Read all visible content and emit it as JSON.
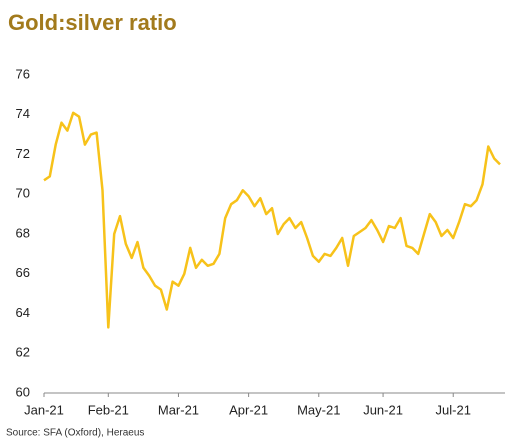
{
  "chart_data": {
    "type": "line",
    "title": "Gold:silver ratio",
    "source": "Source: SFA (Oxford), Heraeus",
    "categories": [
      "Jan-21",
      null,
      null,
      null,
      null,
      null,
      null,
      null,
      null,
      null,
      null,
      "Feb-21",
      null,
      null,
      null,
      null,
      null,
      null,
      null,
      null,
      null,
      null,
      null,
      "Mar-21",
      null,
      null,
      null,
      null,
      null,
      null,
      null,
      null,
      null,
      null,
      null,
      "Apr-21",
      null,
      null,
      null,
      null,
      null,
      null,
      null,
      null,
      null,
      null,
      null,
      "May-21",
      null,
      null,
      null,
      null,
      null,
      null,
      null,
      null,
      null,
      null,
      "Jun-21",
      null,
      null,
      null,
      null,
      null,
      null,
      null,
      null,
      null,
      null,
      null,
      "Jul-21",
      null,
      null,
      null,
      null,
      null,
      null,
      null,
      null
    ],
    "series": [
      {
        "name": "Gold:silver ratio",
        "color": "#f7c21a",
        "values": [
          70.7,
          70.9,
          72.5,
          73.6,
          73.2,
          74.1,
          73.9,
          72.5,
          73.0,
          73.1,
          70.2,
          63.3,
          68.0,
          68.9,
          67.5,
          66.8,
          67.6,
          66.3,
          65.9,
          65.4,
          65.2,
          64.2,
          65.6,
          65.4,
          66.0,
          67.3,
          66.3,
          66.7,
          66.4,
          66.5,
          67.0,
          68.8,
          69.5,
          69.7,
          70.2,
          69.9,
          69.4,
          69.8,
          69.0,
          69.3,
          68.0,
          68.5,
          68.8,
          68.3,
          68.6,
          67.8,
          66.9,
          66.6,
          67.0,
          66.9,
          67.3,
          67.8,
          66.4,
          67.9,
          68.1,
          68.3,
          68.7,
          68.2,
          67.6,
          68.4,
          68.3,
          68.8,
          67.4,
          67.3,
          67.0,
          68.0,
          69.0,
          68.6,
          67.9,
          68.2,
          67.8,
          68.6,
          69.5,
          69.4,
          69.7,
          70.5,
          72.4,
          71.8,
          71.5
        ]
      }
    ],
    "ylim": [
      60,
      76
    ],
    "yticks": [
      60,
      62,
      64,
      66,
      68,
      70,
      72,
      74,
      76
    ]
  }
}
